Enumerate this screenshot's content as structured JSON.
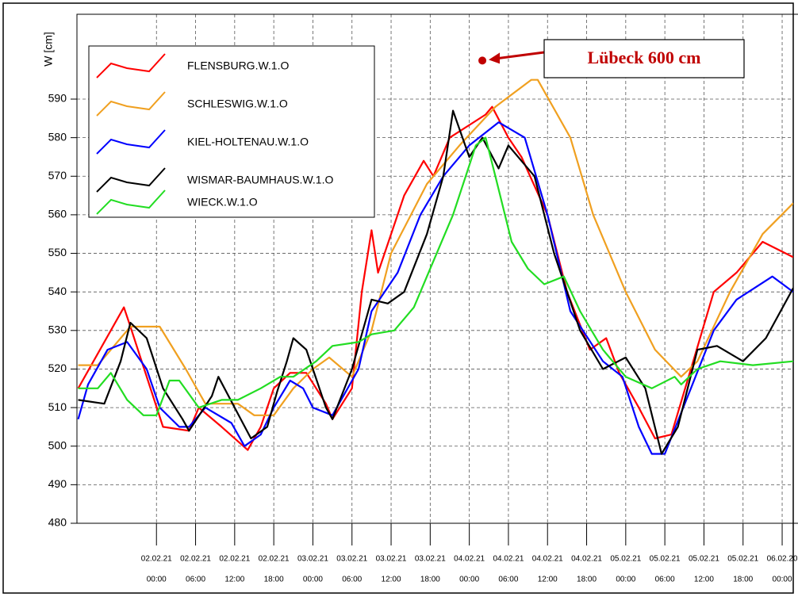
{
  "chart_data": {
    "type": "line",
    "y_label": "W [cm]",
    "xlim": [
      -12.2,
      97.7
    ],
    "ylim": [
      480,
      612
    ],
    "yticks": [
      480,
      490,
      500,
      510,
      520,
      530,
      540,
      550,
      560,
      570,
      580,
      590
    ],
    "xticks": [
      {
        "value": 0,
        "label": [
          "02.02.21",
          "00:00"
        ]
      },
      {
        "value": 6,
        "label": [
          "02.02.21",
          "06:00"
        ]
      },
      {
        "value": 12,
        "label": [
          "02.02.21",
          "12:00"
        ]
      },
      {
        "value": 18,
        "label": [
          "02.02.21",
          "18:00"
        ]
      },
      {
        "value": 24,
        "label": [
          "03.02.21",
          "00:00"
        ]
      },
      {
        "value": 30,
        "label": [
          "03.02.21",
          "06:00"
        ]
      },
      {
        "value": 36,
        "label": [
          "03.02.21",
          "12:00"
        ]
      },
      {
        "value": 42,
        "label": [
          "03.02.21",
          "18:00"
        ]
      },
      {
        "value": 48,
        "label": [
          "04.02.21",
          "00:00"
        ]
      },
      {
        "value": 54,
        "label": [
          "04.02.21",
          "06:00"
        ]
      },
      {
        "value": 60,
        "label": [
          "04.02.21",
          "12:00"
        ]
      },
      {
        "value": 66,
        "label": [
          "04.02.21",
          "18:00"
        ]
      },
      {
        "value": 72,
        "label": [
          "05.02.21",
          "00:00"
        ]
      },
      {
        "value": 78,
        "label": [
          "05.02.21",
          "06:00"
        ]
      },
      {
        "value": 84,
        "label": [
          "05.02.21",
          "12:00"
        ]
      },
      {
        "value": 90,
        "label": [
          "05.02.21",
          "18:00"
        ]
      },
      {
        "value": 96,
        "label": [
          "06.02.20",
          "00:00"
        ]
      }
    ],
    "grid": true,
    "legend": "upper left",
    "annotation": {
      "text": "Lübeck 600 cm",
      "x": 50,
      "y": 600,
      "color": "#c00000"
    },
    "series": [
      {
        "name": "FLENSBURG.W.1.O",
        "color": "#ff0000",
        "x": [
          -12,
          -5,
          -4,
          1,
          5,
          6.5,
          10,
          14,
          16,
          18,
          20.5,
          23,
          26,
          27,
          30,
          31.5,
          33,
          34,
          38,
          41,
          42.5,
          45,
          50.5,
          51.5,
          54,
          56,
          60,
          63,
          66.5,
          69,
          71,
          74,
          76.5,
          79,
          82,
          85.5,
          89,
          93,
          97.7
        ],
        "values": [
          515,
          536,
          531,
          505,
          504,
          510,
          505,
          499,
          505,
          515,
          519,
          519,
          511,
          507,
          515,
          540,
          556,
          545,
          565,
          574,
          570,
          580,
          586,
          588,
          580,
          575,
          560,
          540,
          525,
          528,
          519,
          510,
          502,
          503,
          520,
          540,
          545,
          553,
          549
        ]
      },
      {
        "name": "SCHLESWIG.W.1.O",
        "color": "#f0a020",
        "x": [
          -12,
          -9,
          -4,
          0.5,
          4.5,
          7.5,
          12.5,
          15,
          18,
          21,
          24,
          26.5,
          30,
          33,
          36,
          41.5,
          46.5,
          52,
          57.5,
          58.5,
          63.5,
          67,
          72,
          76.5,
          80.5,
          83,
          88,
          93,
          97.7
        ],
        "values": [
          521,
          521,
          531,
          531,
          520,
          511,
          511,
          508,
          508,
          515,
          520,
          523,
          518,
          530,
          550,
          568,
          578,
          588,
          595,
          595,
          580,
          560,
          540,
          525,
          518,
          522,
          540,
          555,
          563
        ]
      },
      {
        "name": "KIEL-HOLTENAU.W.1.O",
        "color": "#0000ff",
        "x": [
          -12,
          -10.5,
          -7.5,
          -4.5,
          -1.5,
          0.5,
          3.5,
          5,
          7.5,
          11.5,
          13.5,
          16,
          18,
          20.5,
          22.5,
          24,
          27,
          31,
          33,
          37,
          40.5,
          44,
          48,
          52.5,
          56.5,
          60,
          63.5,
          68.5,
          71.5,
          74,
          76,
          78,
          82,
          85.5,
          89,
          94.5,
          97.7
        ],
        "values": [
          507,
          516,
          525,
          527,
          520,
          510,
          505,
          505,
          510,
          506,
          500,
          503,
          510,
          517,
          515,
          510,
          508,
          520,
          535,
          545,
          560,
          570,
          578,
          584,
          580,
          560,
          535,
          522,
          518,
          505,
          498,
          498,
          515,
          530,
          538,
          544,
          540
        ]
      },
      {
        "name": "WISMAR-BAUMHAUS.W.1.O",
        "color": "#000000",
        "x": [
          -12,
          -8,
          -5.5,
          -4,
          -1.5,
          1,
          4,
          5,
          8.5,
          9.5,
          12,
          14.5,
          17,
          18.5,
          20,
          21,
          23,
          26,
          27,
          30,
          33,
          35.5,
          38,
          41.5,
          44,
          45.5,
          48,
          50,
          52.5,
          54,
          58,
          61,
          65,
          68.5,
          72,
          75,
          77.5,
          80,
          83,
          86,
          90,
          93.5,
          97.7
        ],
        "values": [
          512,
          511,
          522,
          532,
          528,
          515,
          507,
          504,
          513,
          518,
          510,
          502,
          505,
          514,
          522,
          528,
          525,
          510,
          507,
          520,
          538,
          537,
          540,
          555,
          570,
          587,
          575,
          580,
          572,
          578,
          570,
          550,
          530,
          520,
          523,
          515,
          498,
          505,
          525,
          526,
          522,
          528,
          541
        ]
      },
      {
        "name": "WIECK.W.1.O",
        "color": "#22dd22",
        "x": [
          -12,
          -9,
          -7,
          -4.5,
          -2,
          0,
          2,
          3.5,
          6.5,
          10,
          12.5,
          16,
          19,
          21,
          24.5,
          27,
          31,
          33,
          36.5,
          39.5,
          41.5,
          45.5,
          49,
          50.5,
          52,
          54.5,
          57,
          59.5,
          62.5,
          65,
          68.5,
          72,
          76,
          79.5,
          80.5,
          83,
          86.5,
          91.5,
          97.7
        ],
        "values": [
          515,
          515,
          519,
          512,
          508,
          508,
          517,
          517,
          510,
          512,
          512,
          515,
          518,
          518,
          522,
          526,
          527,
          529,
          530,
          536,
          544,
          560,
          578,
          580,
          570,
          553,
          546,
          542,
          544,
          535,
          525,
          518,
          515,
          518,
          516,
          520,
          522,
          521,
          522
        ]
      }
    ]
  }
}
